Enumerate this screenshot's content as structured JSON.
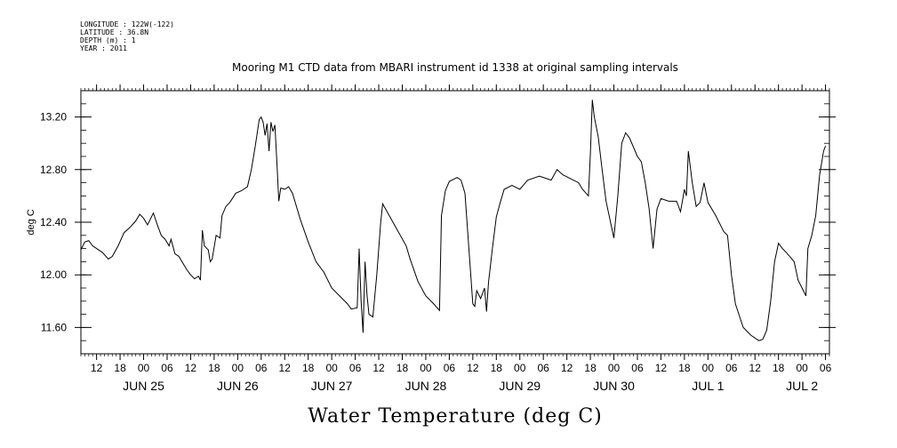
{
  "meta": {
    "longitude": "LONGITUDE : 122W(-122)",
    "latitude": "LATITUDE : 36.8N",
    "depth": "DEPTH (m) : 1",
    "year": "YEAR : 2011"
  },
  "chart_data": {
    "type": "line",
    "title": "Mooring M1 CTD data from MBARI instrument id 1338 at original sampling intervals",
    "xlabel": "Water Temperature (deg C)",
    "ylabel": "deg C",
    "ylim": [
      11.4,
      13.4
    ],
    "y_ticks": [
      "11.60",
      "12.00",
      "12.40",
      "12.80",
      "13.20"
    ],
    "y_tick_values": [
      11.6,
      12.0,
      12.4,
      12.8,
      13.2
    ],
    "hour_ticks": [
      "12",
      "18",
      "00",
      "06",
      "12",
      "18",
      "00",
      "06",
      "12",
      "18",
      "00",
      "06",
      "12",
      "18",
      "00",
      "06",
      "12",
      "18",
      "00",
      "06",
      "12",
      "18",
      "00",
      "06",
      "12",
      "18",
      "00",
      "06",
      "12",
      "18",
      "00",
      "06"
    ],
    "day_labels": [
      "JUN 25",
      "JUN 26",
      "JUN 27",
      "JUN 28",
      "JUN 29",
      "JUN 30",
      "JUL  1",
      "JUL  2"
    ],
    "grid": false,
    "series": [
      {
        "color": "#000000",
        "points": [
          [
            "2011-06-24 08:00",
            12.19
          ],
          [
            "2011-06-24 09:00",
            12.25
          ],
          [
            "2011-06-24 10:00",
            12.26
          ],
          [
            "2011-06-24 11:00",
            12.22
          ],
          [
            "2011-06-24 12:00",
            12.2
          ],
          [
            "2011-06-24 13:30",
            12.17
          ],
          [
            "2011-06-24 15:00",
            12.12
          ],
          [
            "2011-06-24 16:00",
            12.14
          ],
          [
            "2011-06-24 17:30",
            12.22
          ],
          [
            "2011-06-24 19:00",
            12.32
          ],
          [
            "2011-06-24 20:30",
            12.36
          ],
          [
            "2011-06-24 22:00",
            12.41
          ],
          [
            "2011-06-24 23:00",
            12.46
          ],
          [
            "2011-06-25 00:00",
            12.43
          ],
          [
            "2011-06-25 01:00",
            12.38
          ],
          [
            "2011-06-25 02:30",
            12.47
          ],
          [
            "2011-06-25 03:30",
            12.38
          ],
          [
            "2011-06-25 04:30",
            12.3
          ],
          [
            "2011-06-25 05:30",
            12.27
          ],
          [
            "2011-06-25 06:30",
            12.22
          ],
          [
            "2011-06-25 07:00",
            12.27
          ],
          [
            "2011-06-25 08:00",
            12.16
          ],
          [
            "2011-06-25 09:00",
            12.14
          ],
          [
            "2011-06-25 10:00",
            12.09
          ],
          [
            "2011-06-25 11:00",
            12.04
          ],
          [
            "2011-06-25 12:00",
            12.0
          ],
          [
            "2011-06-25 13:00",
            11.97
          ],
          [
            "2011-06-25 14:00",
            11.99
          ],
          [
            "2011-06-25 14:30",
            11.96
          ],
          [
            "2011-06-25 15:00",
            12.34
          ],
          [
            "2011-06-25 15:30",
            12.22
          ],
          [
            "2011-06-25 16:30",
            12.19
          ],
          [
            "2011-06-25 17:00",
            12.1
          ],
          [
            "2011-06-25 17:30",
            12.12
          ],
          [
            "2011-06-25 18:30",
            12.3
          ],
          [
            "2011-06-25 19:30",
            12.28
          ],
          [
            "2011-06-25 20:00",
            12.45
          ],
          [
            "2011-06-25 21:00",
            12.52
          ],
          [
            "2011-06-25 22:00",
            12.55
          ],
          [
            "2011-06-25 23:30",
            12.62
          ],
          [
            "2011-06-26 01:00",
            12.64
          ],
          [
            "2011-06-26 02:30",
            12.67
          ],
          [
            "2011-06-26 03:30",
            12.8
          ],
          [
            "2011-06-26 04:30",
            12.98
          ],
          [
            "2011-06-26 05:30",
            13.18
          ],
          [
            "2011-06-26 06:00",
            13.2
          ],
          [
            "2011-06-26 06:30",
            13.16
          ],
          [
            "2011-06-26 07:00",
            13.06
          ],
          [
            "2011-06-26 07:30",
            13.15
          ],
          [
            "2011-06-26 08:00",
            12.94
          ],
          [
            "2011-06-26 08:30",
            13.16
          ],
          [
            "2011-06-26 09:00",
            13.09
          ],
          [
            "2011-06-26 09:30",
            13.14
          ],
          [
            "2011-06-26 10:00",
            12.86
          ],
          [
            "2011-06-26 10:30",
            12.56
          ],
          [
            "2011-06-26 11:00",
            12.66
          ],
          [
            "2011-06-26 12:00",
            12.65
          ],
          [
            "2011-06-26 13:00",
            12.67
          ],
          [
            "2011-06-26 14:00",
            12.62
          ],
          [
            "2011-06-26 16:00",
            12.42
          ],
          [
            "2011-06-26 18:00",
            12.25
          ],
          [
            "2011-06-26 20:00",
            12.1
          ],
          [
            "2011-06-26 22:00",
            12.02
          ],
          [
            "2011-06-27 00:00",
            11.9
          ],
          [
            "2011-06-27 02:00",
            11.84
          ],
          [
            "2011-06-27 04:00",
            11.78
          ],
          [
            "2011-06-27 05:00",
            11.74
          ],
          [
            "2011-06-27 06:30",
            11.75
          ],
          [
            "2011-06-27 07:00",
            12.2
          ],
          [
            "2011-06-27 07:30",
            11.8
          ],
          [
            "2011-06-27 08:00",
            11.56
          ],
          [
            "2011-06-27 08:30",
            12.1
          ],
          [
            "2011-06-27 09:00",
            11.85
          ],
          [
            "2011-06-27 09:30",
            11.7
          ],
          [
            "2011-06-27 10:30",
            11.68
          ],
          [
            "2011-06-27 11:30",
            12.0
          ],
          [
            "2011-06-27 12:30",
            12.4
          ],
          [
            "2011-06-27 13:00",
            12.54
          ],
          [
            "2011-06-27 19:00",
            12.22
          ],
          [
            "2011-06-27 20:00",
            12.12
          ],
          [
            "2011-06-27 22:00",
            11.95
          ],
          [
            "2011-06-28 00:00",
            11.84
          ],
          [
            "2011-06-28 02:00",
            11.78
          ],
          [
            "2011-06-28 03:30",
            11.73
          ],
          [
            "2011-06-28 04:00",
            12.45
          ],
          [
            "2011-06-28 05:00",
            12.64
          ],
          [
            "2011-06-28 06:00",
            12.71
          ],
          [
            "2011-06-28 08:00",
            12.74
          ],
          [
            "2011-06-28 09:00",
            12.72
          ],
          [
            "2011-06-28 10:00",
            12.62
          ],
          [
            "2011-06-28 11:00",
            12.2
          ],
          [
            "2011-06-28 12:00",
            11.78
          ],
          [
            "2011-06-28 12:30",
            11.76
          ],
          [
            "2011-06-28 13:00",
            11.88
          ],
          [
            "2011-06-28 14:00",
            11.82
          ],
          [
            "2011-06-28 15:00",
            11.9
          ],
          [
            "2011-06-28 15:30",
            11.72
          ],
          [
            "2011-06-28 16:00",
            11.94
          ],
          [
            "2011-06-28 17:00",
            12.2
          ],
          [
            "2011-06-28 18:00",
            12.44
          ],
          [
            "2011-06-28 19:00",
            12.55
          ],
          [
            "2011-06-28 20:00",
            12.65
          ],
          [
            "2011-06-28 22:00",
            12.68
          ],
          [
            "2011-06-29 00:00",
            12.65
          ],
          [
            "2011-06-29 02:00",
            12.72
          ],
          [
            "2011-06-29 05:00",
            12.75
          ],
          [
            "2011-06-29 08:00",
            12.72
          ],
          [
            "2011-06-29 09:30",
            12.8
          ],
          [
            "2011-06-29 11:00",
            12.76
          ],
          [
            "2011-06-29 13:00",
            12.73
          ],
          [
            "2011-06-29 15:00",
            12.7
          ],
          [
            "2011-06-29 16:00",
            12.65
          ],
          [
            "2011-06-29 17:30",
            12.6
          ],
          [
            "2011-06-29 18:00",
            12.92
          ],
          [
            "2011-06-29 18:30",
            13.33
          ],
          [
            "2011-06-29 19:00",
            13.2
          ],
          [
            "2011-06-29 20:00",
            13.05
          ],
          [
            "2011-06-29 21:00",
            12.8
          ],
          [
            "2011-06-29 22:00",
            12.56
          ],
          [
            "2011-06-30 00:00",
            12.28
          ],
          [
            "2011-06-30 01:00",
            12.6
          ],
          [
            "2011-06-30 02:00",
            13.0
          ],
          [
            "2011-06-30 03:00",
            13.08
          ],
          [
            "2011-06-30 04:00",
            13.04
          ],
          [
            "2011-06-30 06:00",
            12.9
          ],
          [
            "2011-06-30 07:00",
            12.86
          ],
          [
            "2011-06-30 08:00",
            12.7
          ],
          [
            "2011-06-30 09:00",
            12.5
          ],
          [
            "2011-06-30 10:00",
            12.2
          ],
          [
            "2011-06-30 11:00",
            12.5
          ],
          [
            "2011-06-30 12:00",
            12.58
          ],
          [
            "2011-06-30 14:00",
            12.56
          ],
          [
            "2011-06-30 16:00",
            12.56
          ],
          [
            "2011-06-30 17:00",
            12.48
          ],
          [
            "2011-06-30 18:00",
            12.65
          ],
          [
            "2011-06-30 18:30",
            12.6
          ],
          [
            "2011-06-30 19:00",
            12.94
          ],
          [
            "2011-06-30 20:00",
            12.7
          ],
          [
            "2011-06-30 21:00",
            12.52
          ],
          [
            "2011-06-30 22:00",
            12.55
          ],
          [
            "2011-06-30 23:00",
            12.7
          ],
          [
            "2011-07-01 00:00",
            12.55
          ],
          [
            "2011-07-01 02:00",
            12.45
          ],
          [
            "2011-07-01 04:00",
            12.33
          ],
          [
            "2011-07-01 05:00",
            12.3
          ],
          [
            "2011-07-01 06:00",
            12.0
          ],
          [
            "2011-07-01 07:00",
            11.78
          ],
          [
            "2011-07-01 09:00",
            11.6
          ],
          [
            "2011-07-01 11:00",
            11.54
          ],
          [
            "2011-07-01 13:00",
            11.5
          ],
          [
            "2011-07-01 14:00",
            11.51
          ],
          [
            "2011-07-01 15:00",
            11.58
          ],
          [
            "2011-07-01 16:00",
            11.8
          ],
          [
            "2011-07-01 17:00",
            12.1
          ],
          [
            "2011-07-01 18:00",
            12.24
          ],
          [
            "2011-07-01 19:00",
            12.2
          ],
          [
            "2011-07-01 20:00",
            12.17
          ],
          [
            "2011-07-01 22:00",
            12.1
          ],
          [
            "2011-07-01 23:00",
            11.96
          ],
          [
            "2011-07-02 00:00",
            11.9
          ],
          [
            "2011-07-02 01:00",
            11.84
          ],
          [
            "2011-07-02 01:30",
            12.2
          ],
          [
            "2011-07-02 02:30",
            12.3
          ],
          [
            "2011-07-02 03:30",
            12.45
          ],
          [
            "2011-07-02 04:30",
            12.76
          ],
          [
            "2011-07-02 05:30",
            12.94
          ],
          [
            "2011-07-02 06:00",
            12.98
          ]
        ]
      }
    ]
  }
}
